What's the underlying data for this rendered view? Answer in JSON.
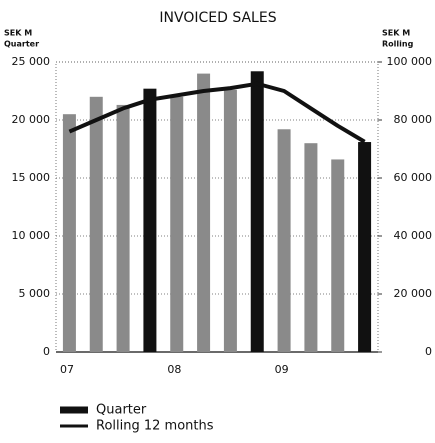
{
  "chart_data": {
    "type": "bar",
    "title": "INVOICED SALES",
    "y_label": [
      "SEK M",
      "Quarter"
    ],
    "y2_label": [
      "SEK M",
      "Rolling"
    ],
    "categories": [
      "07",
      null,
      null,
      null,
      "08",
      null,
      null,
      null,
      "09",
      null,
      null,
      null
    ],
    "series": [
      {
        "name": "Quarter",
        "type": "bar",
        "values": [
          20500,
          22000,
          21300,
          22700,
          22000,
          24000,
          22600,
          24200,
          19200,
          18000,
          16600,
          18100
        ],
        "colors": [
          "#8a8a8a",
          "#8a8a8a",
          "#8a8a8a",
          "#111111",
          "#8a8a8a",
          "#8a8a8a",
          "#8a8a8a",
          "#111111",
          "#8a8a8a",
          "#8a8a8a",
          "#8a8a8a",
          "#111111"
        ]
      },
      {
        "name": "Rolling 12 months",
        "type": "line",
        "axis": "y2",
        "color": "#111111",
        "values": [
          76000,
          80000,
          84000,
          87000,
          88500,
          90000,
          91000,
          92500,
          90000,
          84000,
          78000,
          72500
        ]
      }
    ],
    "ylim": [
      0,
      25000
    ],
    "yticks": [
      0,
      {
        "value": 5000,
        "label": "5 000"
      },
      {
        "value": 10000,
        "label": "10 000"
      },
      {
        "value": 15000,
        "label": "15 000"
      },
      {
        "value": 20000,
        "label": "20 000"
      },
      {
        "value": 25000,
        "label": "25 000"
      }
    ],
    "y2lim": [
      0,
      100000
    ],
    "y2ticks": [
      0,
      {
        "value": 20000,
        "label": "20 000"
      },
      {
        "value": 40000,
        "label": "40 000"
      },
      {
        "value": 60000,
        "label": "60 000"
      },
      {
        "value": 80000,
        "label": "80 000"
      },
      {
        "value": 100000,
        "label": "100 000"
      }
    ],
    "grid": true,
    "legend": "bottom-left"
  }
}
